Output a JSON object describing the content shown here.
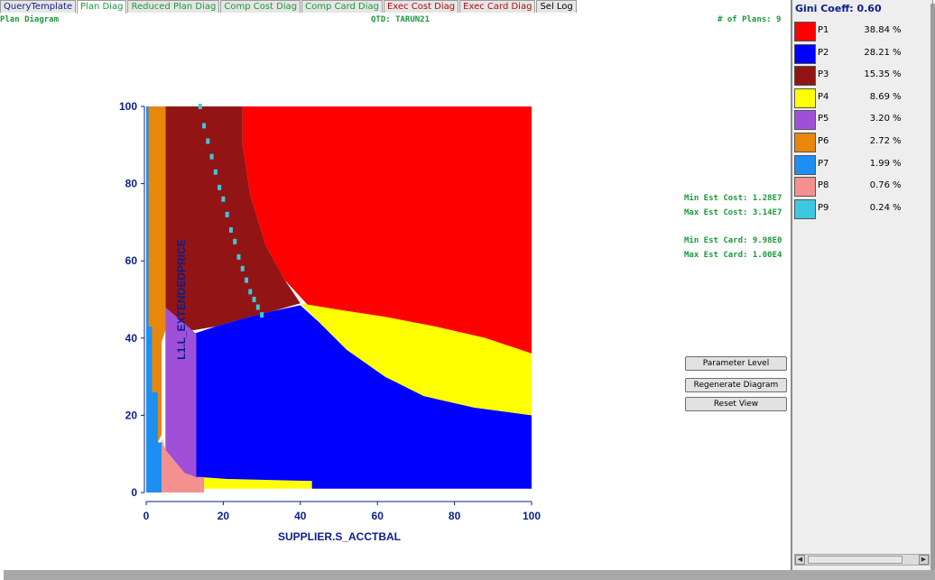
{
  "tabs": [
    {
      "label": "QueryTemplate",
      "color": "#0a1e8c"
    },
    {
      "label": "Plan Diag",
      "color": "#1a9a3a",
      "active": true
    },
    {
      "label": "Reduced Plan Diag",
      "color": "#1a9a3a"
    },
    {
      "label": "Comp Cost Diag",
      "color": "#1a9a3a"
    },
    {
      "label": "Comp Card Diag",
      "color": "#1a9a3a"
    },
    {
      "label": "Exec Cost Diag",
      "color": "#b01010"
    },
    {
      "label": "Exec Card Diag",
      "color": "#b01010"
    },
    {
      "label": "Sel Log",
      "color": "#000000"
    }
  ],
  "header": {
    "title": "Plan Diagram",
    "qtd": "QTD: TARUN21",
    "plans": "# of Plans: 9"
  },
  "stats": {
    "min_cost": "Min Est Cost: 1.28E7",
    "max_cost": "Max Est Cost: 3.14E7",
    "min_card": "Min Est Card: 9.98E0",
    "max_card": "Max Est Card: 1.00E4"
  },
  "buttons": {
    "parameter_level": "Parameter Level",
    "regenerate": "Regenerate Diagram",
    "reset": "Reset View"
  },
  "legend": {
    "gini": "Gini Coeff: 0.60",
    "pct_symbol": "%",
    "items": [
      {
        "name": "P1",
        "value": "38.84",
        "color": "#ff0000"
      },
      {
        "name": "P2",
        "value": "28.21",
        "color": "#0000ff"
      },
      {
        "name": "P3",
        "value": "15.35",
        "color": "#921414"
      },
      {
        "name": "P4",
        "value": "8.69",
        "color": "#ffff00"
      },
      {
        "name": "P5",
        "value": "3.20",
        "color": "#a050d8"
      },
      {
        "name": "P6",
        "value": "2.72",
        "color": "#e8870a"
      },
      {
        "name": "P7",
        "value": "1.99",
        "color": "#1c8ff0"
      },
      {
        "name": "P8",
        "value": "0.76",
        "color": "#f59090"
      },
      {
        "name": "P9",
        "value": "0.24",
        "color": "#3cc8e0"
      }
    ]
  },
  "chart_data": {
    "type": "heatmap",
    "xlabel": "SUPPLIER.S_ACCTBAL",
    "ylabel": "L1.L_EXTENDEDPRICE",
    "xlim": [
      0,
      100
    ],
    "ylim": [
      0,
      100
    ],
    "xticks": [
      "0",
      "20",
      "40",
      "60",
      "80",
      "100"
    ],
    "yticks": [
      "0",
      "20",
      "40",
      "60",
      "80",
      "100"
    ],
    "label_color": "#0a1e8c",
    "regions": [
      {
        "plan": "P1",
        "color": "#ff0000",
        "polygon": [
          [
            25,
            100
          ],
          [
            100,
            100
          ],
          [
            100,
            36
          ],
          [
            88,
            40
          ],
          [
            75,
            43
          ],
          [
            62,
            45.5
          ],
          [
            52,
            47
          ],
          [
            42,
            48.5
          ],
          [
            36,
            55
          ],
          [
            31,
            64
          ],
          [
            27,
            77
          ],
          [
            25,
            90
          ]
        ]
      },
      {
        "plan": "P3",
        "color": "#921414",
        "polygon": [
          [
            5,
            100
          ],
          [
            25,
            100
          ],
          [
            25,
            90
          ],
          [
            27,
            77
          ],
          [
            31,
            64
          ],
          [
            36,
            55
          ],
          [
            40,
            49
          ],
          [
            33,
            47
          ],
          [
            25,
            45
          ],
          [
            18,
            43
          ],
          [
            12,
            42
          ],
          [
            5,
            42
          ]
        ]
      },
      {
        "plan": "P2",
        "color": "#0000ff",
        "polygon": [
          [
            12,
            41
          ],
          [
            18,
            43
          ],
          [
            25,
            45
          ],
          [
            33,
            47
          ],
          [
            40,
            48.5
          ],
          [
            45,
            44
          ],
          [
            52,
            37
          ],
          [
            62,
            30
          ],
          [
            72,
            25
          ],
          [
            85,
            22
          ],
          [
            100,
            20
          ],
          [
            100,
            1
          ],
          [
            43,
            1
          ],
          [
            43,
            3
          ],
          [
            21,
            3
          ],
          [
            14,
            4
          ],
          [
            12,
            4
          ]
        ]
      },
      {
        "plan": "P4",
        "color": "#ffff00",
        "polygon": [
          [
            40,
            49
          ],
          [
            52,
            47
          ],
          [
            62,
            45.5
          ],
          [
            75,
            43
          ],
          [
            88,
            40
          ],
          [
            100,
            36
          ],
          [
            100,
            20
          ],
          [
            85,
            22
          ],
          [
            72,
            25
          ],
          [
            62,
            30
          ],
          [
            52,
            37
          ],
          [
            45,
            44
          ]
        ]
      },
      {
        "plan": "P4",
        "color": "#ffff00",
        "polygon": [
          [
            14,
            4
          ],
          [
            21,
            3.5
          ],
          [
            43,
            3
          ],
          [
            43,
            1
          ],
          [
            14,
            1
          ]
        ]
      },
      {
        "plan": "P5",
        "color": "#a050d8",
        "polygon": [
          [
            5,
            48
          ],
          [
            12,
            42
          ],
          [
            13,
            41
          ],
          [
            13,
            4
          ],
          [
            10,
            5
          ],
          [
            5,
            11
          ]
        ]
      },
      {
        "plan": "P6",
        "color": "#e8870a",
        "polygon": [
          [
            0.5,
            100
          ],
          [
            5,
            100
          ],
          [
            5,
            42
          ],
          [
            4,
            39
          ],
          [
            4,
            15
          ],
          [
            3,
            13
          ],
          [
            3,
            0
          ],
          [
            0.5,
            0
          ]
        ]
      },
      {
        "plan": "P7",
        "color": "#1c8ff0",
        "polygon": [
          [
            0,
            100
          ],
          [
            0.6,
            100
          ],
          [
            0.6,
            43
          ],
          [
            1.5,
            43
          ],
          [
            1.5,
            26
          ],
          [
            3,
            26
          ],
          [
            3,
            13
          ],
          [
            4,
            13
          ],
          [
            4,
            0
          ],
          [
            0,
            0
          ]
        ]
      },
      {
        "plan": "P8",
        "color": "#f59090",
        "polygon": [
          [
            4,
            14
          ],
          [
            5,
            11
          ],
          [
            10,
            5
          ],
          [
            13,
            4
          ],
          [
            15,
            4
          ],
          [
            15,
            0
          ],
          [
            4,
            0
          ]
        ]
      }
    ],
    "p9_points": [
      [
        14,
        100
      ],
      [
        15,
        95
      ],
      [
        16,
        91
      ],
      [
        17,
        87
      ],
      [
        18,
        83
      ],
      [
        19,
        79
      ],
      [
        20,
        76
      ],
      [
        21,
        72
      ],
      [
        22,
        68
      ],
      [
        23,
        65
      ],
      [
        24,
        61
      ],
      [
        25,
        58
      ],
      [
        26,
        55
      ],
      [
        27,
        52
      ],
      [
        28,
        50
      ],
      [
        29,
        48
      ],
      [
        30,
        46
      ]
    ],
    "p9_color": "#3cc8e0"
  }
}
